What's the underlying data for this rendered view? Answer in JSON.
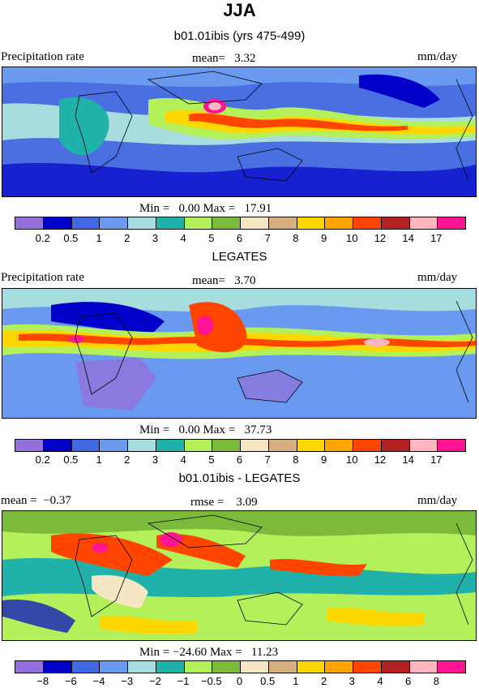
{
  "header": {
    "title": "JJA"
  },
  "panels": [
    {
      "subtitle": "b01.01ibis (yrs 475-499)",
      "left_label": "Precipitation rate",
      "stat_label": "mean=",
      "stat_value": "3.32",
      "units": "mm/day",
      "minmax_min_label": "Min =",
      "minmax_min": "0.00",
      "minmax_max_label": "Max =",
      "minmax_max": "17.91"
    },
    {
      "subtitle": "LEGATES",
      "left_label": "Precipitation rate",
      "stat_label": "mean=",
      "stat_value": "3.70",
      "units": "mm/day",
      "minmax_min_label": "Min =",
      "minmax_min": "0.00",
      "minmax_max_label": "Max =",
      "minmax_max": "37.73"
    },
    {
      "subtitle": "b01.01ibis - LEGATES",
      "left_label": "mean =",
      "left_value": "−0.37",
      "stat_label": "rmse =",
      "stat_value": "3.09",
      "units": "mm/day",
      "minmax_min_label": "Min =",
      "minmax_min": "−24.60",
      "minmax_max_label": "Max =",
      "minmax_max": "11.23"
    }
  ],
  "colorbars": {
    "precip": {
      "colors": [
        "#9370db",
        "#0000c8",
        "#4169e1",
        "#6a9aef",
        "#a8dde0",
        "#20b2aa",
        "#b4f05a",
        "#7cba3c",
        "#f5e6c4",
        "#d8b080",
        "#ffd700",
        "#ffa500",
        "#ff4500",
        "#b22222",
        "#ffb6c1",
        "#ff1493"
      ],
      "ticks": [
        "0.2",
        "0.5",
        "1",
        "2",
        "3",
        "4",
        "5",
        "6",
        "7",
        "8",
        "9",
        "10",
        "12",
        "14",
        "17"
      ]
    },
    "diff": {
      "colors": [
        "#9370db",
        "#0000c8",
        "#4169e1",
        "#6a9aef",
        "#a8dde0",
        "#20b2aa",
        "#b4f05a",
        "#7cba3c",
        "#f5e6c4",
        "#d8b080",
        "#ffd700",
        "#ffa500",
        "#ff4500",
        "#b22222",
        "#ffb6c1",
        "#ff1493"
      ],
      "ticks": [
        "−8",
        "−6",
        "−4",
        "−3",
        "−2",
        "−1",
        "−0.5",
        "0",
        "0.5",
        "1",
        "2",
        "3",
        "4",
        "6",
        "8"
      ]
    }
  }
}
